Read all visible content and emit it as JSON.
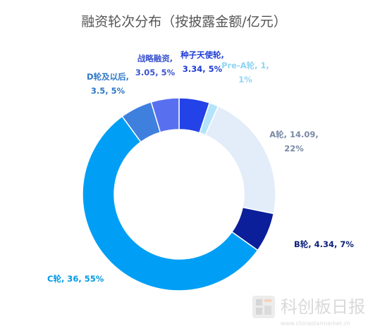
{
  "chart_data": {
    "type": "pie",
    "title": "融资轮次分布（按披露金额/亿元）",
    "slices": [
      {
        "name": "种子天使轮",
        "value": 3.34,
        "percent": "5%",
        "label_lines": [
          "种子天使轮,",
          "3.34, 5%"
        ],
        "color": "#2342e8",
        "label_color": "#1f3bd6"
      },
      {
        "name": "Pre-A轮",
        "value": 1,
        "percent": "1%",
        "label_lines": [
          "Pre-A轮, 1,",
          "1%"
        ],
        "color": "#b3e3fb",
        "label_color": "#8fd3f5"
      },
      {
        "name": "A轮",
        "value": 14.09,
        "percent": "22%",
        "label_lines": [
          "A轮, 14.09,",
          "22%"
        ],
        "color": "#e2edf9",
        "label_color": "#7a8aa6"
      },
      {
        "name": "B轮",
        "value": 4.34,
        "percent": "7%",
        "label_lines": [
          "B轮, 4.34, 7%"
        ],
        "color": "#0b1f9a",
        "label_color": "#0b1f7a"
      },
      {
        "name": "C轮",
        "value": 36,
        "percent": "55%",
        "label_lines": [
          "C轮, 36, 55%"
        ],
        "color": "#009ff5",
        "label_color": "#0099e6"
      },
      {
        "name": "D轮及以后",
        "value": 3.5,
        "percent": "5%",
        "label_lines": [
          "D轮及以后,",
          "3.5, 5%"
        ],
        "color": "#3f80df",
        "label_color": "#2f78c8"
      },
      {
        "name": "战略融资",
        "value": 3.05,
        "percent": "5%",
        "label_lines": [
          "战略融资,",
          "3.05, 5%"
        ],
        "color": "#5870f0",
        "label_color": "#3d55d0"
      }
    ]
  },
  "watermark": {
    "name": "科创板日报",
    "url": "www.chinastarmarket.cn"
  }
}
